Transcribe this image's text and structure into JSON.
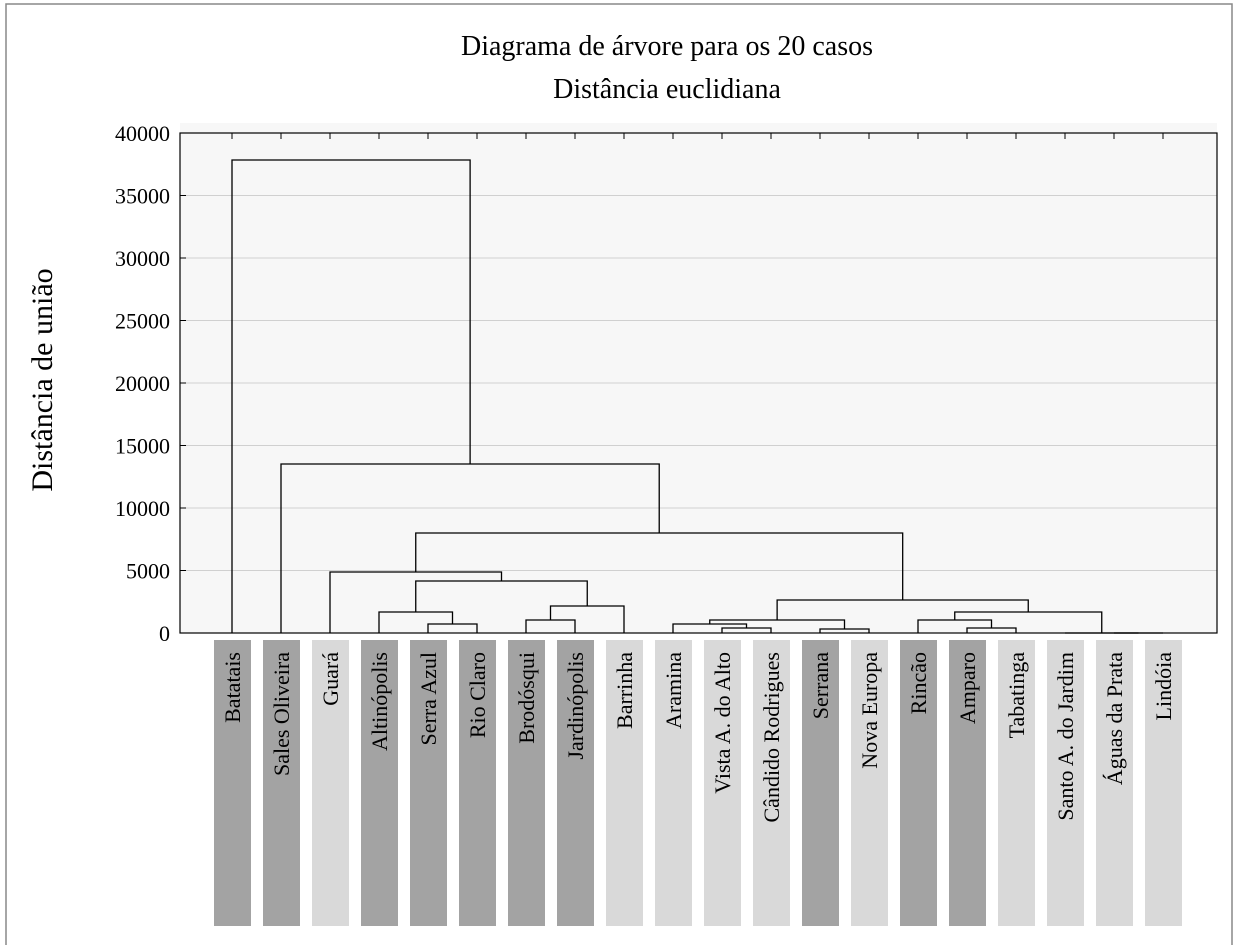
{
  "chart_data": {
    "type": "dendrogram",
    "title": "Diagrama de árvore para os 20 casos",
    "subtitle": "Distância euclidiana",
    "y_label": "Distância de união",
    "categories": [
      "Batatais",
      "Sales Oliveira",
      "Guará",
      "Altinópolis",
      "Serra Azul",
      "Rio Claro",
      "Brodósqui",
      "Jardinópolis",
      "Barrinha",
      "Aramina",
      "Vista A. do Alto",
      "Cândido Rodrigues",
      "Serrana",
      "Nova Europa",
      "Rincão",
      "Amparo",
      "Tabatinga",
      "Santo A. do Jardim",
      "Águas da Prata",
      "Lindóia"
    ],
    "leaf_colors": [
      "#a3a3a3",
      "#a3a3a3",
      "#d9d9d9",
      "#a3a3a3",
      "#a3a3a3",
      "#a3a3a3",
      "#a3a3a3",
      "#a3a3a3",
      "#d9d9d9",
      "#d9d9d9",
      "#d9d9d9",
      "#d9d9d9",
      "#a3a3a3",
      "#d9d9d9",
      "#a3a3a3",
      "#a3a3a3",
      "#d9d9d9",
      "#d9d9d9",
      "#d9d9d9",
      "#d9d9d9"
    ],
    "merges": [
      {
        "children": [
          4,
          5
        ],
        "height": 720
      },
      {
        "children": [
          3,
          20
        ],
        "height": 1680
      },
      {
        "children": [
          6,
          7
        ],
        "height": 1040
      },
      {
        "children": [
          22,
          8
        ],
        "height": 2160
      },
      {
        "children": [
          21,
          23
        ],
        "height": 4160
      },
      {
        "children": [
          2,
          24
        ],
        "height": 4880
      },
      {
        "children": [
          10,
          11
        ],
        "height": 400
      },
      {
        "children": [
          9,
          26
        ],
        "height": 720
      },
      {
        "children": [
          12,
          13
        ],
        "height": 320
      },
      {
        "children": [
          27,
          28
        ],
        "height": 1040
      },
      {
        "children": [
          15,
          16
        ],
        "height": 400
      },
      {
        "children": [
          14,
          30
        ],
        "height": 1040
      },
      {
        "children": [
          18,
          19
        ],
        "height": 0
      },
      {
        "children": [
          17,
          32
        ],
        "height": 0
      },
      {
        "children": [
          31,
          33
        ],
        "height": 1680
      },
      {
        "children": [
          29,
          34
        ],
        "height": 2640
      },
      {
        "children": [
          25,
          35
        ],
        "height": 8000
      },
      {
        "children": [
          1,
          36
        ],
        "height": 13520
      },
      {
        "children": [
          0,
          37
        ],
        "height": 37840
      }
    ],
    "line_color": "#000000",
    "ylim": [
      0,
      40000
    ],
    "yticks": [
      0,
      5000,
      10000,
      15000,
      20000,
      25000,
      30000,
      35000,
      40000
    ],
    "grid": true
  }
}
